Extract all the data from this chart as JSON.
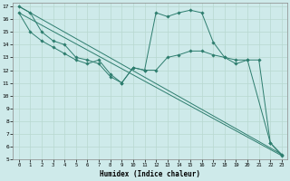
{
  "xlabel": "Humidex (Indice chaleur)",
  "bg_color": "#ceeaea",
  "line_color": "#2d7d6e",
  "grid_color": "#b8d8d0",
  "xlim": [
    -0.5,
    23.5
  ],
  "ylim": [
    5,
    17.3
  ],
  "lines": [
    {
      "x": [
        0,
        1,
        2,
        3,
        4,
        5,
        6,
        7,
        8,
        9,
        10,
        11,
        12,
        13,
        14,
        15,
        16,
        17,
        18,
        19,
        20,
        22,
        23
      ],
      "y": [
        17,
        16.5,
        15,
        14.3,
        14,
        13.0,
        12.8,
        12.5,
        11.5,
        11.0,
        12.2,
        12.0,
        16.5,
        16.2,
        16.5,
        16.7,
        16.5,
        14.2,
        13.0,
        12.8,
        12.8,
        6.3,
        5.4
      ],
      "marker": true
    },
    {
      "x": [
        0,
        1,
        2,
        3,
        4,
        5,
        6,
        7,
        8,
        9,
        10,
        11,
        12,
        13,
        14,
        15,
        16,
        17,
        18,
        19,
        20,
        21,
        22,
        23
      ],
      "y": [
        16.5,
        15,
        14.3,
        13.8,
        13.3,
        12.8,
        12.5,
        12.8,
        11.7,
        11.0,
        12.2,
        12.0,
        12.0,
        13.0,
        13.2,
        13.5,
        13.5,
        13.2,
        13.0,
        12.5,
        12.8,
        12.8,
        6.3,
        5.3
      ],
      "marker": true
    },
    {
      "x": [
        0,
        23
      ],
      "y": [
        17,
        5.4
      ],
      "marker": false
    },
    {
      "x": [
        0,
        23
      ],
      "y": [
        16.5,
        5.3
      ],
      "marker": false
    }
  ],
  "xticks": [
    0,
    1,
    2,
    3,
    4,
    5,
    6,
    7,
    8,
    9,
    10,
    11,
    12,
    13,
    14,
    15,
    16,
    17,
    18,
    19,
    20,
    21,
    22,
    23
  ],
  "yticks": [
    5,
    6,
    7,
    8,
    9,
    10,
    11,
    12,
    13,
    14,
    15,
    16,
    17
  ]
}
